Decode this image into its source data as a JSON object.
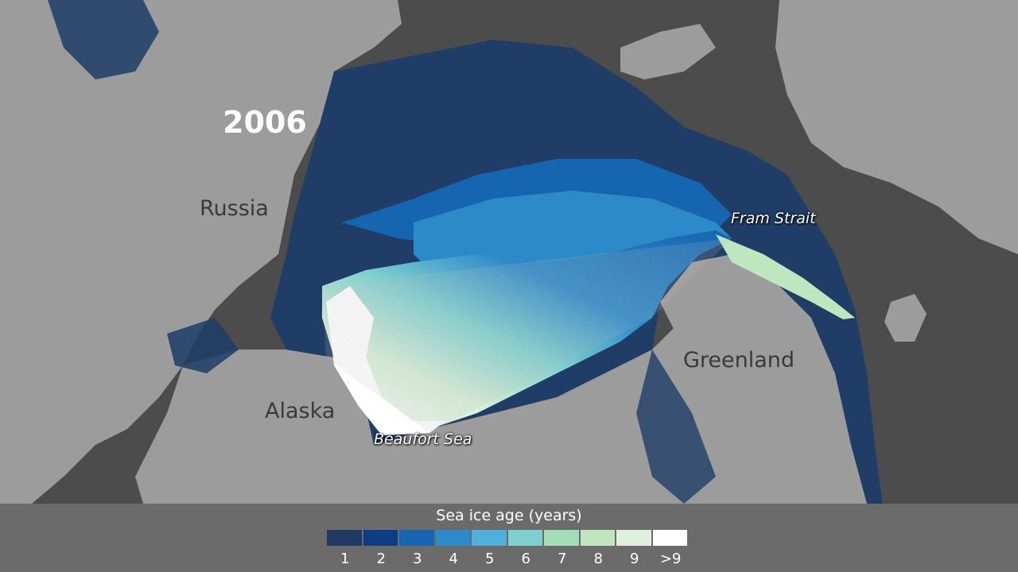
{
  "map": {
    "year": "2006",
    "regions": {
      "russia": "Russia",
      "alaska": "Alaska",
      "greenland": "Greenland"
    },
    "callouts": {
      "fram_strait": "Fram Strait",
      "beaufort_sea": "Beaufort Sea"
    }
  },
  "colors": {
    "land": "#9c9c9c",
    "ocean": "#4c4c4c",
    "ice_young": "#1f3d66"
  },
  "legend": {
    "title": "Sea ice age (years)",
    "bins": [
      {
        "label": "1",
        "color": "#1f3a63"
      },
      {
        "label": "2",
        "color": "#0d3d85"
      },
      {
        "label": "3",
        "color": "#1565b0"
      },
      {
        "label": "4",
        "color": "#2d8ac9"
      },
      {
        "label": "5",
        "color": "#4fb1da"
      },
      {
        "label": "6",
        "color": "#7fcfcf"
      },
      {
        "label": "7",
        "color": "#a3deb8"
      },
      {
        "label": "8",
        "color": "#c0e6c0"
      },
      {
        "label": "9",
        "color": "#dff1dc"
      },
      {
        "label": ">9",
        "color": "#ffffff"
      }
    ]
  }
}
